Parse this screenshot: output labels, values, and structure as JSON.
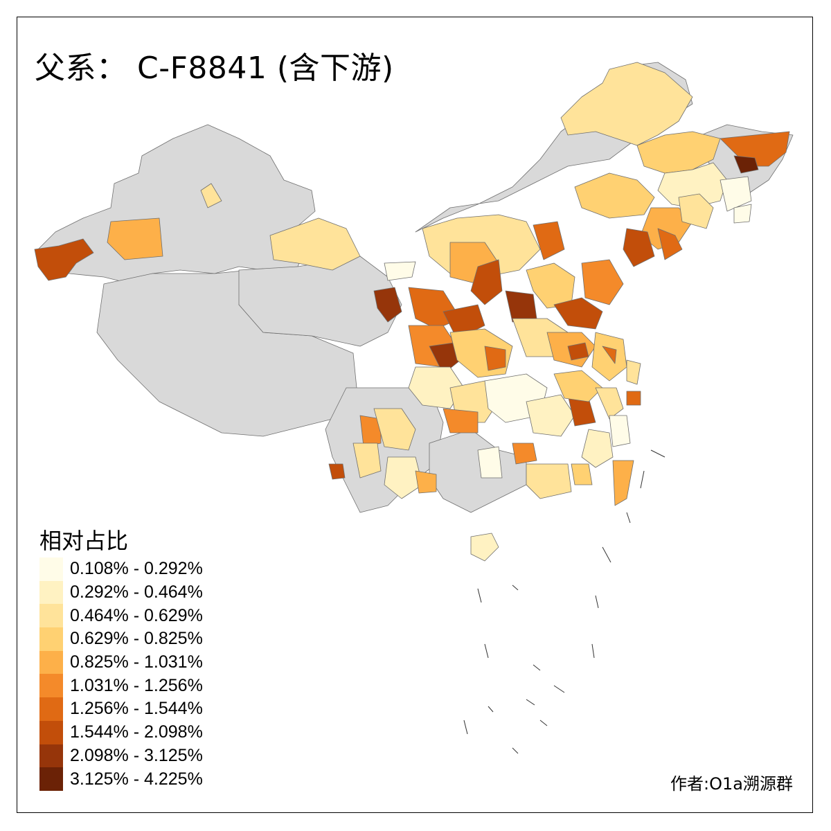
{
  "title": "父系：  C-F8841 (含下游)",
  "legend": {
    "title": "相对占比",
    "items": [
      {
        "label": "0.108% - 0.292%",
        "color": "#FFFCE8"
      },
      {
        "label": "0.292% - 0.464%",
        "color": "#FFF2C2"
      },
      {
        "label": "0.464% - 0.629%",
        "color": "#FFE39A"
      },
      {
        "label": "0.629% - 0.825%",
        "color": "#FFD172"
      },
      {
        "label": "0.825% - 1.031%",
        "color": "#FDB049"
      },
      {
        "label": "1.031% - 1.256%",
        "color": "#F48A2A"
      },
      {
        "label": "1.256% - 1.544%",
        "color": "#E06A14"
      },
      {
        "label": "1.544% - 2.098%",
        "color": "#C24E0A"
      },
      {
        "label": "2.098% - 3.125%",
        "color": "#96350A"
      },
      {
        "label": "3.125% - 4.225%",
        "color": "#6B2206"
      }
    ]
  },
  "no_data_color": "#D9D9D9",
  "author": "作者:O1a溯源群"
}
